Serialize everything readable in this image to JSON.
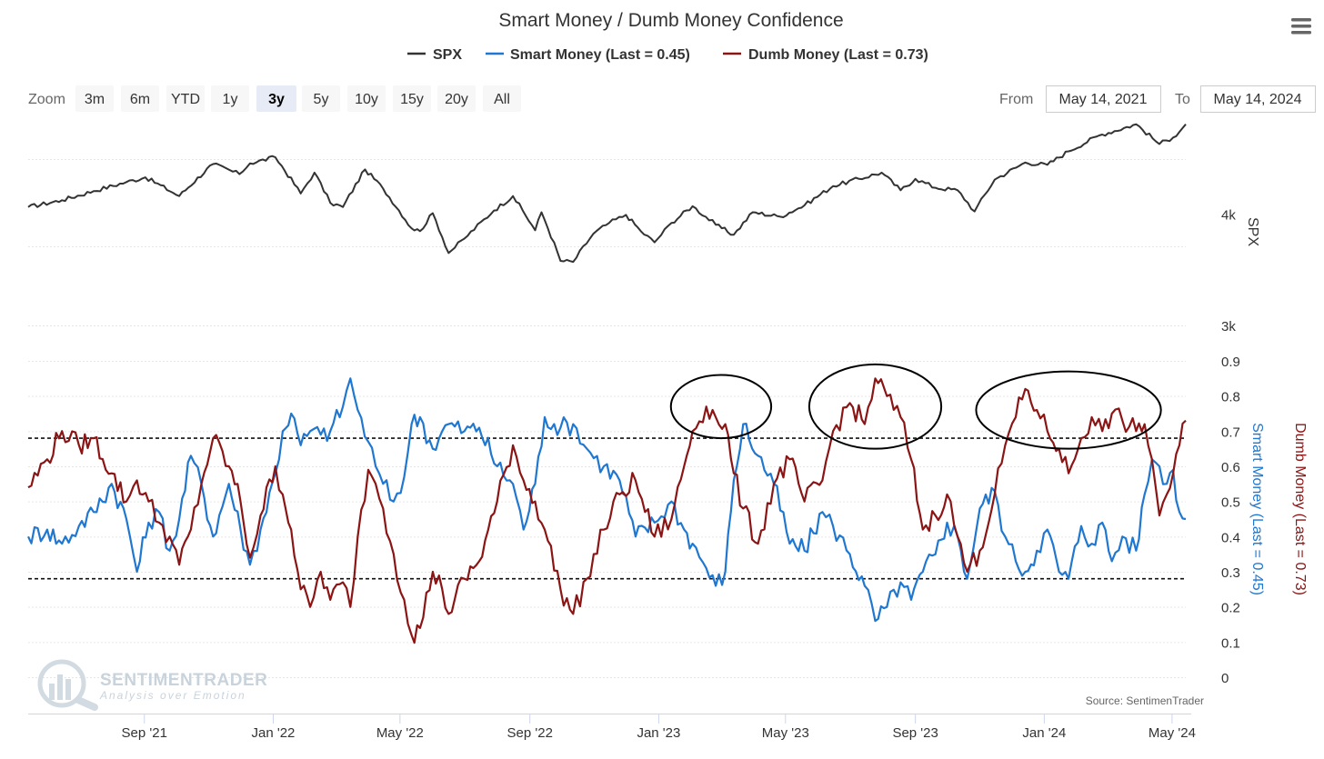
{
  "title": "Smart Money / Dumb Money Confidence",
  "menu_icon": "hamburger-menu-icon",
  "legend": [
    {
      "label": "SPX",
      "color": "#333333"
    },
    {
      "label": "Smart Money (Last = 0.45)",
      "color": "#1f77d0"
    },
    {
      "label": "Dumb Money (Last = 0.73)",
      "color": "#8b1414"
    }
  ],
  "zoom": {
    "label": "Zoom",
    "buttons": [
      "3m",
      "6m",
      "YTD",
      "1y",
      "3y",
      "5y",
      "10y",
      "15y",
      "20y",
      "All"
    ],
    "active": "3y"
  },
  "range": {
    "from_label": "From",
    "from_value": "May 14, 2021",
    "to_label": "To",
    "to_value": "May 14, 2024"
  },
  "credit": "Source: SentimenTrader",
  "watermark": {
    "name": "SENTIMENTRADER",
    "tagline": "Analysis over Emotion"
  },
  "chart_data": {
    "type": "line",
    "x_range": [
      "2021-05-14",
      "2024-05-14"
    ],
    "x_ticks": [
      "Sep '21",
      "Jan '22",
      "May '22",
      "Sep '22",
      "Jan '23",
      "May '23",
      "Sep '23",
      "Jan '24",
      "May '24"
    ],
    "spx_axis": {
      "title": "SPX",
      "ticks": [
        "4k",
        "3k"
      ],
      "tick_values": [
        4000,
        3000
      ],
      "range": [
        3000,
        5300
      ],
      "log": true
    },
    "confidence_axis": {
      "ticks": [
        "0.9",
        "0.8",
        "0.7",
        "0.6",
        "0.5",
        "0.4",
        "0.3",
        "0.2",
        "0.1",
        "0"
      ],
      "range": [
        0,
        0.9
      ]
    },
    "smart_axis_title": "Smart Money (Last = 0.45)",
    "dumb_axis_title": "Dumb Money (Last = 0.73)",
    "reference_lines": [
      0.68,
      0.28
    ],
    "series": [
      {
        "name": "SPX",
        "color": "#333333",
        "points": [
          [
            "2021-05-14",
            4170
          ],
          [
            "2021-06-15",
            4250
          ],
          [
            "2021-07-15",
            4360
          ],
          [
            "2021-08-15",
            4470
          ],
          [
            "2021-09-02",
            4530
          ],
          [
            "2021-10-04",
            4300
          ],
          [
            "2021-11-05",
            4700
          ],
          [
            "2021-11-30",
            4570
          ],
          [
            "2021-12-10",
            4710
          ],
          [
            "2022-01-03",
            4790
          ],
          [
            "2022-01-27",
            4330
          ],
          [
            "2022-02-09",
            4590
          ],
          [
            "2022-02-24",
            4220
          ],
          [
            "2022-03-08",
            4170
          ],
          [
            "2022-03-29",
            4630
          ],
          [
            "2022-04-15",
            4390
          ],
          [
            "2022-05-12",
            3930
          ],
          [
            "2022-05-20",
            3900
          ],
          [
            "2022-06-01",
            4100
          ],
          [
            "2022-06-16",
            3670
          ],
          [
            "2022-07-01",
            3820
          ],
          [
            "2022-07-29",
            4130
          ],
          [
            "2022-08-16",
            4300
          ],
          [
            "2022-09-06",
            3910
          ],
          [
            "2022-09-12",
            4110
          ],
          [
            "2022-09-30",
            3590
          ],
          [
            "2022-10-12",
            3580
          ],
          [
            "2022-10-31",
            3870
          ],
          [
            "2022-11-15",
            3990
          ],
          [
            "2022-12-01",
            4080
          ],
          [
            "2022-12-15",
            3900
          ],
          [
            "2022-12-28",
            3780
          ],
          [
            "2023-01-13",
            3990
          ],
          [
            "2023-02-02",
            4180
          ],
          [
            "2023-02-24",
            3970
          ],
          [
            "2023-03-13",
            3860
          ],
          [
            "2023-03-31",
            4110
          ],
          [
            "2023-04-26",
            4060
          ],
          [
            "2023-05-19",
            4190
          ],
          [
            "2023-06-15",
            4420
          ],
          [
            "2023-07-31",
            4590
          ],
          [
            "2023-08-18",
            4370
          ],
          [
            "2023-09-01",
            4510
          ],
          [
            "2023-09-20",
            4400
          ],
          [
            "2023-10-11",
            4370
          ],
          [
            "2023-10-27",
            4120
          ],
          [
            "2023-11-15",
            4500
          ],
          [
            "2023-12-14",
            4720
          ],
          [
            "2024-01-04",
            4690
          ],
          [
            "2024-01-24",
            4870
          ],
          [
            "2024-02-22",
            5090
          ],
          [
            "2024-03-28",
            5250
          ],
          [
            "2024-04-19",
            4970
          ],
          [
            "2024-05-02",
            5060
          ],
          [
            "2024-05-14",
            5250
          ]
        ]
      },
      {
        "name": "Smart Money (Last = 0.45)",
        "color": "#1f77d0",
        "points": [
          [
            "2021-05-14",
            0.4
          ],
          [
            "2021-06-01",
            0.42
          ],
          [
            "2021-06-15",
            0.38
          ],
          [
            "2021-07-01",
            0.43
          ],
          [
            "2021-07-15",
            0.47
          ],
          [
            "2021-08-01",
            0.55
          ],
          [
            "2021-08-15",
            0.45
          ],
          [
            "2021-08-25",
            0.3
          ],
          [
            "2021-09-05",
            0.44
          ],
          [
            "2021-09-15",
            0.47
          ],
          [
            "2021-09-25",
            0.36
          ],
          [
            "2021-10-04",
            0.45
          ],
          [
            "2021-10-15",
            0.63
          ],
          [
            "2021-10-25",
            0.55
          ],
          [
            "2021-11-05",
            0.4
          ],
          [
            "2021-11-20",
            0.55
          ],
          [
            "2021-12-01",
            0.42
          ],
          [
            "2021-12-10",
            0.32
          ],
          [
            "2021-12-20",
            0.42
          ],
          [
            "2022-01-03",
            0.58
          ],
          [
            "2022-01-10",
            0.7
          ],
          [
            "2022-01-18",
            0.75
          ],
          [
            "2022-01-27",
            0.66
          ],
          [
            "2022-02-05",
            0.7
          ],
          [
            "2022-02-15",
            0.69
          ],
          [
            "2022-02-24",
            0.7
          ],
          [
            "2022-03-08",
            0.77
          ],
          [
            "2022-03-15",
            0.85
          ],
          [
            "2022-03-22",
            0.76
          ],
          [
            "2022-04-01",
            0.67
          ],
          [
            "2022-04-08",
            0.6
          ],
          [
            "2022-04-15",
            0.55
          ],
          [
            "2022-04-25",
            0.5
          ],
          [
            "2022-05-05",
            0.57
          ],
          [
            "2022-05-12",
            0.72
          ],
          [
            "2022-05-20",
            0.74
          ],
          [
            "2022-06-01",
            0.65
          ],
          [
            "2022-06-10",
            0.7
          ],
          [
            "2022-06-16",
            0.72
          ],
          [
            "2022-07-01",
            0.7
          ],
          [
            "2022-07-15",
            0.71
          ],
          [
            "2022-08-01",
            0.6
          ],
          [
            "2022-08-16",
            0.55
          ],
          [
            "2022-08-26",
            0.42
          ],
          [
            "2022-09-06",
            0.55
          ],
          [
            "2022-09-15",
            0.74
          ],
          [
            "2022-09-30",
            0.71
          ],
          [
            "2022-10-12",
            0.72
          ],
          [
            "2022-10-25",
            0.65
          ],
          [
            "2022-11-10",
            0.6
          ],
          [
            "2022-11-25",
            0.56
          ],
          [
            "2022-12-10",
            0.4
          ],
          [
            "2022-12-28",
            0.44
          ],
          [
            "2023-01-13",
            0.5
          ],
          [
            "2023-01-25",
            0.42
          ],
          [
            "2023-02-02",
            0.38
          ],
          [
            "2023-02-15",
            0.31
          ],
          [
            "2023-02-24",
            0.26
          ],
          [
            "2023-03-05",
            0.3
          ],
          [
            "2023-03-13",
            0.56
          ],
          [
            "2023-03-22",
            0.72
          ],
          [
            "2023-04-05",
            0.63
          ],
          [
            "2023-04-20",
            0.55
          ],
          [
            "2023-05-05",
            0.38
          ],
          [
            "2023-05-19",
            0.36
          ],
          [
            "2023-06-05",
            0.47
          ],
          [
            "2023-06-15",
            0.43
          ],
          [
            "2023-07-01",
            0.35
          ],
          [
            "2023-07-15",
            0.26
          ],
          [
            "2023-07-25",
            0.16
          ],
          [
            "2023-08-05",
            0.2
          ],
          [
            "2023-08-18",
            0.27
          ],
          [
            "2023-08-28",
            0.22
          ],
          [
            "2023-09-08",
            0.3
          ],
          [
            "2023-09-20",
            0.35
          ],
          [
            "2023-10-01",
            0.44
          ],
          [
            "2023-10-11",
            0.4
          ],
          [
            "2023-10-20",
            0.28
          ],
          [
            "2023-11-01",
            0.48
          ],
          [
            "2023-11-15",
            0.53
          ],
          [
            "2023-11-25",
            0.4
          ],
          [
            "2023-12-05",
            0.33
          ],
          [
            "2023-12-14",
            0.3
          ],
          [
            "2023-12-25",
            0.36
          ],
          [
            "2024-01-04",
            0.42
          ],
          [
            "2024-01-15",
            0.3
          ],
          [
            "2024-01-24",
            0.28
          ],
          [
            "2024-02-05",
            0.43
          ],
          [
            "2024-02-15",
            0.38
          ],
          [
            "2024-02-25",
            0.44
          ],
          [
            "2024-03-05",
            0.33
          ],
          [
            "2024-03-15",
            0.4
          ],
          [
            "2024-03-28",
            0.36
          ],
          [
            "2024-04-05",
            0.52
          ],
          [
            "2024-04-12",
            0.62
          ],
          [
            "2024-04-19",
            0.6
          ],
          [
            "2024-04-26",
            0.55
          ],
          [
            "2024-05-02",
            0.59
          ],
          [
            "2024-05-08",
            0.47
          ],
          [
            "2024-05-14",
            0.45
          ]
        ]
      },
      {
        "name": "Dumb Money (Last = 0.73)",
        "color": "#8b1414",
        "points": [
          [
            "2021-05-14",
            0.54
          ],
          [
            "2021-06-01",
            0.62
          ],
          [
            "2021-06-15",
            0.7
          ],
          [
            "2021-07-01",
            0.66
          ],
          [
            "2021-07-15",
            0.68
          ],
          [
            "2021-08-01",
            0.58
          ],
          [
            "2021-08-15",
            0.5
          ],
          [
            "2021-08-25",
            0.56
          ],
          [
            "2021-09-05",
            0.5
          ],
          [
            "2021-09-15",
            0.44
          ],
          [
            "2021-09-25",
            0.4
          ],
          [
            "2021-10-04",
            0.32
          ],
          [
            "2021-10-15",
            0.42
          ],
          [
            "2021-10-25",
            0.55
          ],
          [
            "2021-11-05",
            0.68
          ],
          [
            "2021-11-20",
            0.6
          ],
          [
            "2021-12-01",
            0.5
          ],
          [
            "2021-12-10",
            0.34
          ],
          [
            "2021-12-20",
            0.46
          ],
          [
            "2022-01-03",
            0.6
          ],
          [
            "2022-01-10",
            0.52
          ],
          [
            "2022-01-18",
            0.42
          ],
          [
            "2022-01-27",
            0.25
          ],
          [
            "2022-02-05",
            0.2
          ],
          [
            "2022-02-15",
            0.3
          ],
          [
            "2022-02-24",
            0.22
          ],
          [
            "2022-03-08",
            0.27
          ],
          [
            "2022-03-15",
            0.2
          ],
          [
            "2022-03-22",
            0.4
          ],
          [
            "2022-04-01",
            0.59
          ],
          [
            "2022-04-08",
            0.55
          ],
          [
            "2022-04-15",
            0.48
          ],
          [
            "2022-04-25",
            0.35
          ],
          [
            "2022-05-05",
            0.22
          ],
          [
            "2022-05-12",
            0.12
          ],
          [
            "2022-05-20",
            0.14
          ],
          [
            "2022-06-01",
            0.3
          ],
          [
            "2022-06-10",
            0.25
          ],
          [
            "2022-06-16",
            0.18
          ],
          [
            "2022-07-01",
            0.28
          ],
          [
            "2022-07-15",
            0.33
          ],
          [
            "2022-08-01",
            0.5
          ],
          [
            "2022-08-16",
            0.66
          ],
          [
            "2022-08-26",
            0.56
          ],
          [
            "2022-09-06",
            0.5
          ],
          [
            "2022-09-15",
            0.42
          ],
          [
            "2022-09-30",
            0.25
          ],
          [
            "2022-10-12",
            0.18
          ],
          [
            "2022-10-25",
            0.28
          ],
          [
            "2022-11-10",
            0.42
          ],
          [
            "2022-11-25",
            0.52
          ],
          [
            "2022-12-10",
            0.56
          ],
          [
            "2022-12-28",
            0.4
          ],
          [
            "2023-01-13",
            0.45
          ],
          [
            "2023-01-25",
            0.6
          ],
          [
            "2023-02-02",
            0.7
          ],
          [
            "2023-02-15",
            0.77
          ],
          [
            "2023-02-24",
            0.74
          ],
          [
            "2023-03-05",
            0.72
          ],
          [
            "2023-03-13",
            0.58
          ],
          [
            "2023-03-22",
            0.48
          ],
          [
            "2023-04-05",
            0.38
          ],
          [
            "2023-04-20",
            0.55
          ],
          [
            "2023-05-05",
            0.62
          ],
          [
            "2023-05-19",
            0.5
          ],
          [
            "2023-06-05",
            0.56
          ],
          [
            "2023-06-15",
            0.7
          ],
          [
            "2023-07-01",
            0.78
          ],
          [
            "2023-07-15",
            0.72
          ],
          [
            "2023-07-25",
            0.85
          ],
          [
            "2023-08-05",
            0.8
          ],
          [
            "2023-08-18",
            0.74
          ],
          [
            "2023-08-28",
            0.62
          ],
          [
            "2023-09-08",
            0.42
          ],
          [
            "2023-09-20",
            0.46
          ],
          [
            "2023-10-01",
            0.52
          ],
          [
            "2023-10-11",
            0.4
          ],
          [
            "2023-10-20",
            0.3
          ],
          [
            "2023-11-01",
            0.36
          ],
          [
            "2023-11-15",
            0.52
          ],
          [
            "2023-11-25",
            0.66
          ],
          [
            "2023-12-05",
            0.74
          ],
          [
            "2023-12-14",
            0.82
          ],
          [
            "2023-12-25",
            0.76
          ],
          [
            "2024-01-04",
            0.7
          ],
          [
            "2024-01-15",
            0.65
          ],
          [
            "2024-01-24",
            0.58
          ],
          [
            "2024-02-05",
            0.68
          ],
          [
            "2024-02-15",
            0.74
          ],
          [
            "2024-02-25",
            0.7
          ],
          [
            "2024-03-05",
            0.75
          ],
          [
            "2024-03-15",
            0.73
          ],
          [
            "2024-03-28",
            0.7
          ],
          [
            "2024-04-05",
            0.72
          ],
          [
            "2024-04-12",
            0.62
          ],
          [
            "2024-04-19",
            0.46
          ],
          [
            "2024-04-26",
            0.52
          ],
          [
            "2024-05-02",
            0.58
          ],
          [
            "2024-05-08",
            0.66
          ],
          [
            "2024-05-14",
            0.73
          ]
        ]
      }
    ],
    "annotations": [
      {
        "type": "ellipse",
        "x_center": "2023-03-01",
        "x_span_days": 95,
        "y_center": 0.77,
        "y_span": 0.18
      },
      {
        "type": "ellipse",
        "x_center": "2023-07-25",
        "x_span_days": 125,
        "y_center": 0.77,
        "y_span": 0.24
      },
      {
        "type": "ellipse",
        "x_center": "2024-01-24",
        "x_span_days": 175,
        "y_center": 0.76,
        "y_span": 0.22
      }
    ]
  }
}
